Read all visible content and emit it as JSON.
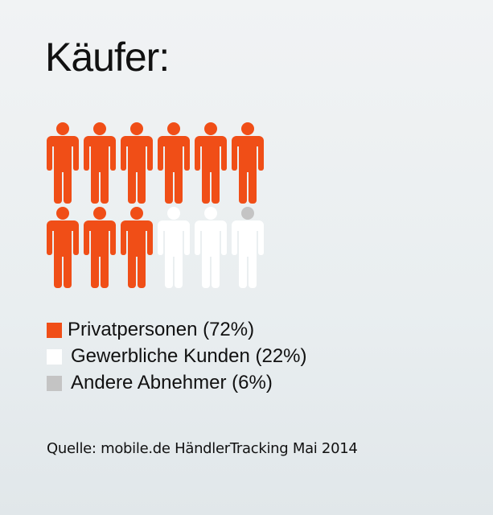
{
  "chart_data": {
    "type": "pictogram",
    "title": "Käufer:",
    "icon": "person-icon",
    "total_icons": 12,
    "series": [
      {
        "name": "Privatpersonen (72%)",
        "value": 72,
        "color": "#f04e17",
        "icons": 9
      },
      {
        "name": "Gewerbliche Kunden (22%)",
        "value": 22,
        "color": "#ffffff",
        "icons": 2.5
      },
      {
        "name": "Andere Abnehmer (6%)",
        "value": 6,
        "color": "#c4c4c4",
        "icons": 0.5
      }
    ],
    "source": "Quelle: mobile.de HändlerTracking Mai 2014"
  }
}
